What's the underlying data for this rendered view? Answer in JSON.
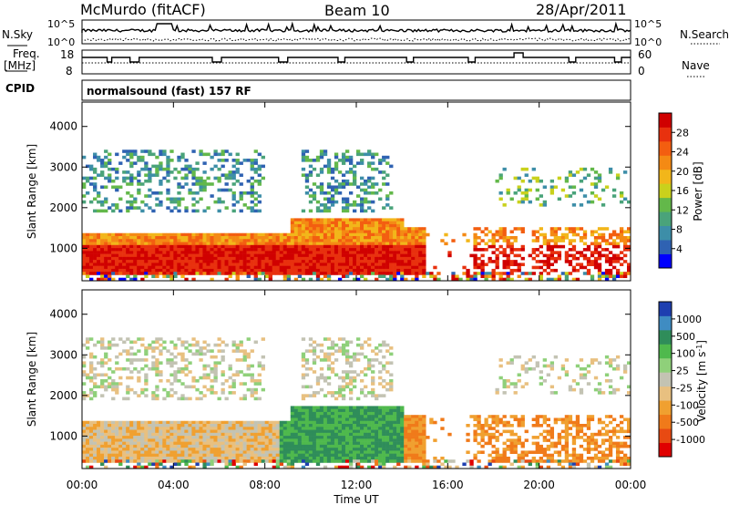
{
  "header": {
    "title": "McMurdo (fitACF)",
    "beam": "Beam 10",
    "date": "28/Apr/2011"
  },
  "sky_panel": {
    "left_label": "N.Sky",
    "right_label": "N.Search",
    "tick_high": "10^5",
    "tick_low": "10^0"
  },
  "freq_panel": {
    "left_label_1": "Freq.",
    "left_label_2": "[MHz]",
    "left_tick_high": "18",
    "left_tick_low": "8",
    "right_label": "Nave",
    "right_tick_high": "60",
    "right_tick_low": "0",
    "cpid_label": "CPID",
    "mode_text": "normalsound (fast) 157 RF"
  },
  "colors": {
    "power_scale": [
      "#0000ff",
      "#2f62b2",
      "#3d8ea8",
      "#4aa37a",
      "#63b84a",
      "#c9d11c",
      "#f2b61a",
      "#f48a14",
      "#f35e10",
      "#e8310e",
      "#d00000"
    ],
    "velocity_scale": [
      "#1e3fb0",
      "#3f8cc2",
      "#2f8d5a",
      "#4fb94d",
      "#8fd07a",
      "#c3c3b3",
      "#e8c080",
      "#f0a030",
      "#f07a1a",
      "#e84a12",
      "#e00000"
    ]
  },
  "chart_data": [
    {
      "type": "heatmap",
      "name": "power",
      "ylabel": "Slant Range [km]",
      "yticks": [
        "1000",
        "2000",
        "3000",
        "4000"
      ],
      "ylim": [
        200,
        4600
      ],
      "xlim_hours": [
        0,
        24
      ],
      "colorbar_title": "Power [dB]",
      "colorbar_ticks": [
        "4",
        "8",
        "12",
        "16",
        "20",
        "24",
        "28"
      ],
      "colorbar_range": [
        0,
        32
      ]
    },
    {
      "type": "heatmap",
      "name": "velocity",
      "ylabel": "Slant Range [km]",
      "yticks": [
        "1000",
        "2000",
        "3000",
        "4000"
      ],
      "ylim": [
        200,
        4600
      ],
      "xlim_hours": [
        0,
        24
      ],
      "colorbar_title": "Velocity [m s^-1]",
      "colorbar_ticks": [
        "1000",
        "500",
        "100",
        "25",
        "-25",
        "-100",
        "-500",
        "-1000"
      ]
    }
  ],
  "xaxis": {
    "label": "Time UT",
    "ticks": [
      "00:00",
      "04:00",
      "08:00",
      "12:00",
      "16:00",
      "20:00",
      "00:00"
    ]
  }
}
